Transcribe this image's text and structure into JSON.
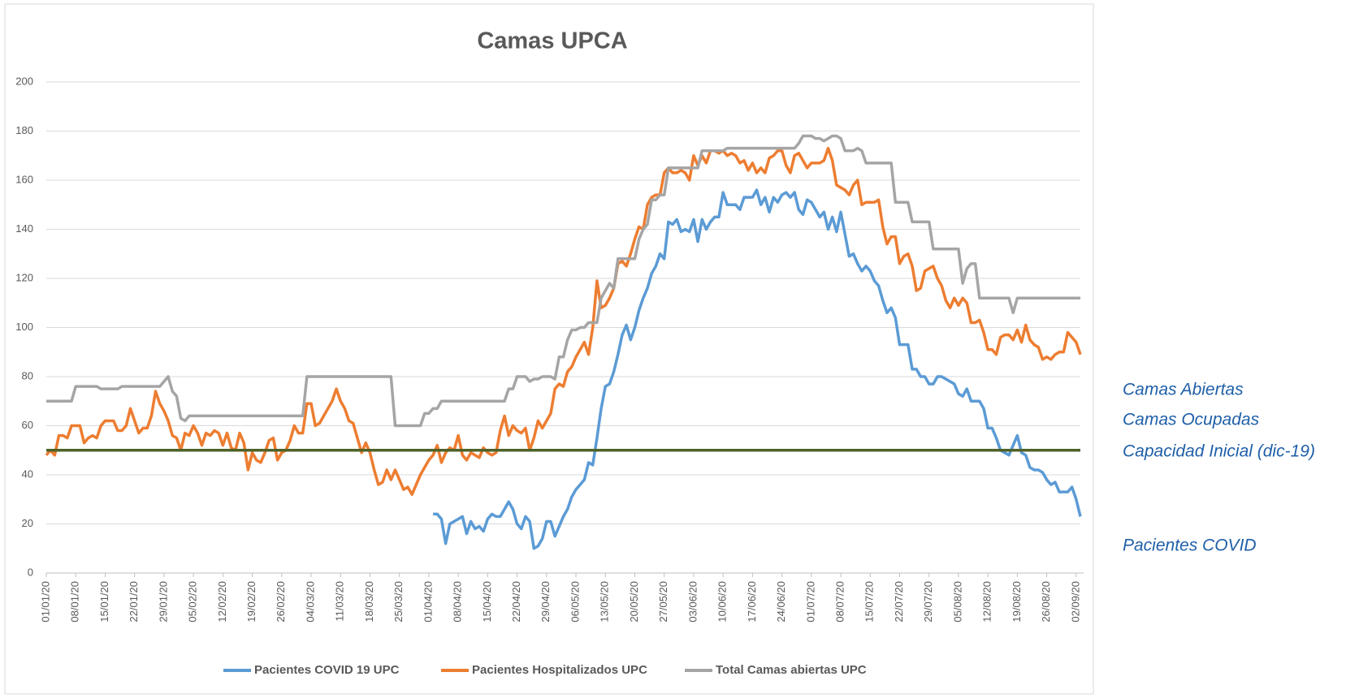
{
  "chart_data": {
    "type": "line",
    "title": "Camas UPCA",
    "categories": [
      "01/01/20",
      null,
      null,
      null,
      null,
      null,
      null,
      "08/01/20",
      null,
      null,
      null,
      null,
      null,
      null,
      "15/01/20",
      null,
      null,
      null,
      null,
      null,
      null,
      "22/01/20",
      null,
      null,
      null,
      null,
      null,
      null,
      "29/01/20",
      null,
      null,
      null,
      null,
      null,
      null,
      "05/02/20",
      null,
      null,
      null,
      null,
      null,
      null,
      "12/02/20",
      null,
      null,
      null,
      null,
      null,
      null,
      "19/02/20",
      null,
      null,
      null,
      null,
      null,
      null,
      "26/02/20",
      null,
      null,
      null,
      null,
      null,
      null,
      "04/03/20",
      null,
      null,
      null,
      null,
      null,
      null,
      "11/03/20",
      null,
      null,
      null,
      null,
      null,
      null,
      "18/03/20",
      null,
      null,
      null,
      null,
      null,
      null,
      "25/03/20",
      null,
      null,
      null,
      null,
      null,
      null,
      "01/04/20",
      null,
      null,
      null,
      null,
      null,
      null,
      "08/04/20",
      null,
      null,
      null,
      null,
      null,
      null,
      "15/04/20",
      null,
      null,
      null,
      null,
      null,
      null,
      "22/04/20",
      null,
      null,
      null,
      null,
      null,
      null,
      "29/04/20",
      null,
      null,
      null,
      null,
      null,
      null,
      "06/05/20",
      null,
      null,
      null,
      null,
      null,
      null,
      "13/05/20",
      null,
      null,
      null,
      null,
      null,
      null,
      "20/05/20",
      null,
      null,
      null,
      null,
      null,
      null,
      "27/05/20",
      null,
      null,
      null,
      null,
      null,
      null,
      "03/06/20",
      null,
      null,
      null,
      null,
      null,
      null,
      "10/06/20",
      null,
      null,
      null,
      null,
      null,
      null,
      "17/06/20",
      null,
      null,
      null,
      null,
      null,
      null,
      "24/06/20",
      null,
      null,
      null,
      null,
      null,
      null,
      "01/07/20",
      null,
      null,
      null,
      null,
      null,
      null,
      "08/07/20",
      null,
      null,
      null,
      null,
      null,
      null,
      "15/07/20",
      null,
      null,
      null,
      null,
      null,
      null,
      "22/07/20",
      null,
      null,
      null,
      null,
      null,
      null,
      "29/07/20",
      null,
      null,
      null,
      null,
      null,
      null,
      "05/08/20",
      null,
      null,
      null,
      null,
      null,
      null,
      "12/08/20",
      null,
      null,
      null,
      null,
      null,
      null,
      "19/08/20",
      null,
      null,
      null,
      null,
      null,
      null,
      "26/08/20",
      null,
      null,
      null,
      null,
      null,
      null,
      "02/09/20",
      null
    ],
    "series": [
      {
        "name": "Pacientes COVID 19 UPC",
        "color": "#5b9bd5",
        "values": [
          null,
          null,
          null,
          null,
          null,
          null,
          null,
          null,
          null,
          null,
          null,
          null,
          null,
          null,
          null,
          null,
          null,
          null,
          null,
          null,
          null,
          null,
          null,
          null,
          null,
          null,
          null,
          null,
          null,
          null,
          null,
          null,
          null,
          null,
          null,
          null,
          null,
          null,
          null,
          null,
          null,
          null,
          null,
          null,
          null,
          null,
          null,
          null,
          null,
          null,
          null,
          null,
          null,
          null,
          null,
          null,
          null,
          null,
          null,
          null,
          null,
          null,
          null,
          null,
          null,
          null,
          null,
          null,
          null,
          null,
          null,
          null,
          null,
          null,
          null,
          null,
          null,
          null,
          null,
          null,
          null,
          null,
          null,
          null,
          null,
          null,
          null,
          null,
          null,
          null,
          null,
          null,
          24,
          24,
          22,
          12,
          20,
          21,
          22,
          23,
          16,
          21,
          18,
          19,
          17,
          22,
          24,
          23,
          23,
          26,
          29,
          26,
          20,
          18,
          23,
          21,
          10,
          11,
          14,
          21,
          21,
          15,
          19,
          23,
          26,
          31,
          34,
          36,
          38,
          45,
          44,
          55,
          67,
          76,
          77,
          82,
          89,
          97,
          101,
          95,
          100,
          107,
          112,
          116,
          122,
          125,
          130,
          128,
          143,
          142,
          144,
          139,
          140,
          139,
          144,
          135,
          144,
          140,
          143,
          145,
          145,
          155,
          150,
          150,
          150,
          148,
          153,
          153,
          153,
          156,
          150,
          153,
          147,
          153,
          151,
          154,
          155,
          153,
          155,
          148,
          146,
          152,
          151,
          148,
          145,
          147,
          140,
          145,
          139,
          147,
          138,
          129,
          130,
          126,
          123,
          125,
          123,
          119,
          117,
          111,
          106,
          108,
          104,
          93,
          93,
          93,
          83,
          83,
          80,
          80,
          77,
          77,
          80,
          80,
          79,
          78,
          77,
          73,
          72,
          75,
          70,
          70,
          70,
          67,
          59,
          59,
          55,
          50,
          49,
          48,
          52,
          56,
          49,
          48,
          43,
          42,
          42,
          41,
          38,
          36,
          37,
          33,
          33,
          33,
          35,
          30,
          23
        ]
      },
      {
        "name": "Pacientes Hospitalizados UPC",
        "color": "#ed7d31",
        "values": [
          48,
          50,
          48,
          56,
          56,
          55,
          60,
          60,
          60,
          53,
          55,
          56,
          55,
          60,
          62,
          62,
          62,
          58,
          58,
          60,
          67,
          62,
          57,
          59,
          59,
          64,
          74,
          69,
          66,
          62,
          56,
          55,
          50,
          57,
          56,
          60,
          57,
          52,
          57,
          56,
          58,
          57,
          52,
          57,
          51,
          50,
          57,
          53,
          42,
          49,
          46,
          45,
          49,
          54,
          55,
          46,
          49,
          50,
          54,
          60,
          57,
          57,
          69,
          69,
          60,
          61,
          64,
          67,
          70,
          75,
          70,
          67,
          62,
          61,
          55,
          49,
          53,
          49,
          42,
          36,
          37,
          42,
          38,
          42,
          38,
          34,
          35,
          32,
          36,
          40,
          43,
          46,
          48,
          52,
          45,
          49,
          51,
          50,
          56,
          48,
          46,
          49,
          48,
          47,
          51,
          49,
          48,
          49,
          58,
          64,
          56,
          60,
          58,
          57,
          59,
          50,
          55,
          62,
          59,
          62,
          65,
          75,
          77,
          76,
          82,
          84,
          88,
          91,
          94,
          89,
          100,
          119,
          108,
          109,
          112,
          116,
          126,
          127,
          125,
          130,
          136,
          141,
          140,
          150,
          153,
          154,
          154,
          163,
          165,
          163,
          163,
          164,
          163,
          160,
          170,
          166,
          170,
          167,
          172,
          172,
          171,
          172,
          170,
          171,
          170,
          167,
          168,
          164,
          167,
          163,
          165,
          163,
          169,
          170,
          172,
          172,
          166,
          163,
          170,
          171,
          168,
          165,
          167,
          167,
          167,
          168,
          173,
          168,
          158,
          157,
          156,
          154,
          158,
          160,
          150,
          151,
          151,
          151,
          152,
          141,
          134,
          137,
          137,
          126,
          129,
          130,
          125,
          115,
          116,
          123,
          124,
          125,
          120,
          117,
          111,
          108,
          112,
          109,
          112,
          110,
          102,
          102,
          103,
          98,
          91,
          91,
          89,
          96,
          97,
          97,
          95,
          99,
          94,
          101,
          95,
          93,
          92,
          87,
          88,
          87,
          89,
          90,
          90,
          98,
          96,
          94,
          89
        ]
      },
      {
        "name": "Total Camas abiertas UPC",
        "color": "#a5a5a5",
        "values": [
          70,
          70,
          70,
          70,
          70,
          70,
          70,
          76,
          76,
          76,
          76,
          76,
          76,
          75,
          75,
          75,
          75,
          75,
          76,
          76,
          76,
          76,
          76,
          76,
          76,
          76,
          76,
          76,
          78,
          80,
          74,
          72,
          63,
          62,
          64,
          64,
          64,
          64,
          64,
          64,
          64,
          64,
          64,
          64,
          64,
          64,
          64,
          64,
          64,
          64,
          64,
          64,
          64,
          64,
          64,
          64,
          64,
          64,
          64,
          64,
          64,
          64,
          80,
          80,
          80,
          80,
          80,
          80,
          80,
          80,
          80,
          80,
          80,
          80,
          80,
          80,
          80,
          80,
          80,
          80,
          80,
          80,
          80,
          60,
          60,
          60,
          60,
          60,
          60,
          60,
          65,
          65,
          67,
          67,
          70,
          70,
          70,
          70,
          70,
          70,
          70,
          70,
          70,
          70,
          70,
          70,
          70,
          70,
          70,
          70,
          75,
          75,
          80,
          80,
          80,
          78,
          79,
          79,
          80,
          80,
          80,
          79,
          88,
          88,
          95,
          99,
          99,
          100,
          100,
          102,
          102,
          102,
          112,
          115,
          118,
          116,
          128,
          128,
          128,
          128,
          128,
          136,
          140,
          142,
          152,
          152,
          154,
          154,
          165,
          165,
          165,
          165,
          165,
          165,
          165,
          165,
          172,
          172,
          172,
          172,
          172,
          172,
          173,
          173,
          173,
          173,
          173,
          173,
          173,
          173,
          173,
          173,
          173,
          173,
          173,
          173,
          173,
          173,
          173,
          175,
          178,
          178,
          178,
          177,
          177,
          176,
          177,
          178,
          178,
          177,
          172,
          172,
          172,
          173,
          172,
          167,
          167,
          167,
          167,
          167,
          167,
          167,
          151,
          151,
          151,
          151,
          143,
          143,
          143,
          143,
          143,
          132,
          132,
          132,
          132,
          132,
          132,
          132,
          118,
          124,
          126,
          126,
          112,
          112,
          112,
          112,
          112,
          112,
          112,
          112,
          106,
          112,
          112,
          112,
          112,
          112,
          112,
          112,
          112,
          112,
          112,
          112,
          112,
          112,
          112,
          112,
          112
        ]
      }
    ],
    "hline": {
      "value": 50,
      "color": "#4f6228"
    },
    "annotations": [
      "Camas Abiertas",
      "Camas Ocupadas",
      "Capacidad Inicial (dic-19)",
      "Pacientes COVID"
    ],
    "ylim": [
      0,
      200
    ],
    "yticks": [
      0,
      20,
      40,
      60,
      80,
      100,
      120,
      140,
      160,
      180,
      200
    ],
    "grid": true,
    "legend": "bottom"
  }
}
